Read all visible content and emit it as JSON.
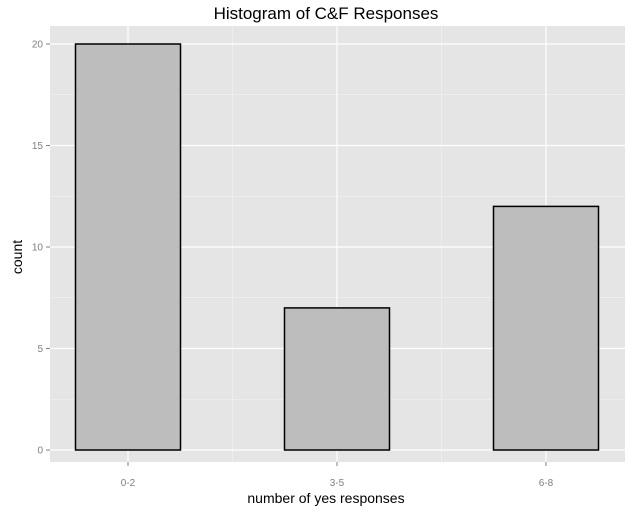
{
  "chart_data": {
    "type": "bar",
    "title": "Histogram of C&F Responses",
    "xlabel": "number of yes responses",
    "ylabel": "count",
    "categories": [
      "0-2",
      "3-5",
      "6-8"
    ],
    "values": [
      20,
      7,
      12
    ],
    "ylim": [
      0,
      21
    ],
    "yticks": [
      0,
      5,
      10,
      15,
      20
    ],
    "grid": true,
    "legend": "none",
    "colors": {
      "panel_background": "#e5e5e5",
      "bar_fill": "#bdbdbd",
      "bar_outline": "#000000",
      "gridline": "#ffffff"
    }
  }
}
